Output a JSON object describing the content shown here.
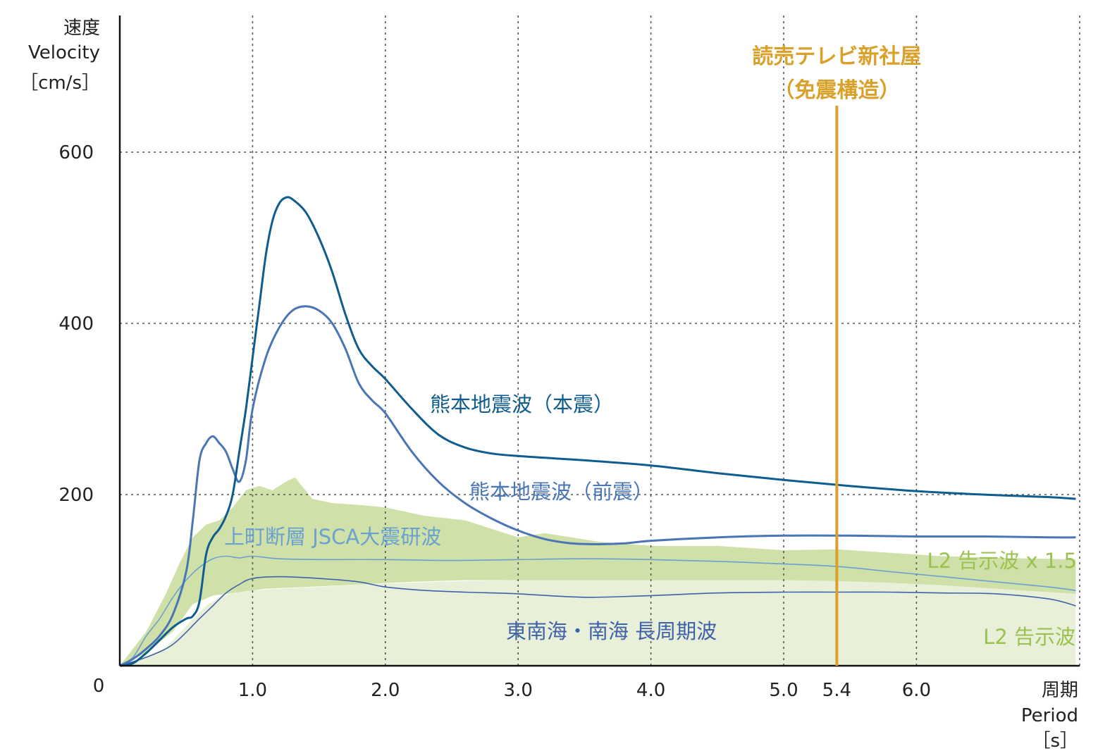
{
  "chart_data": {
    "type": "line",
    "y_axis": {
      "title_lines": [
        "速度",
        "Velocity",
        "［cm/s］"
      ],
      "ticks": [
        200,
        400,
        600
      ],
      "ylim": [
        0,
        760
      ],
      "grid": "dotted"
    },
    "x_axis": {
      "title_lines": [
        "周期",
        "Period",
        "［s］"
      ],
      "origin_label": "0",
      "ticks": [
        {
          "value": 1.0,
          "label": "1.0"
        },
        {
          "value": 2.0,
          "label": "2.0"
        },
        {
          "value": 3.0,
          "label": "3.0"
        },
        {
          "value": 4.0,
          "label": "4.0"
        },
        {
          "value": 5.0,
          "label": "5.0"
        },
        {
          "value": 6.0,
          "label": "6.0"
        }
      ],
      "xlim": [
        0,
        7.2
      ],
      "grid": "dotted"
    },
    "marker": {
      "x": 5.4,
      "label": "5.4",
      "title_lines": [
        "読売テレビ新社屋",
        "（免震構造）"
      ],
      "color": "#d9a12a"
    },
    "bands": [
      {
        "name": "L2 告示波 x 1.5",
        "color": "#cfe1a9",
        "lower": [
          [
            0,
            0
          ],
          [
            0.2,
            15
          ],
          [
            0.4,
            40
          ],
          [
            0.55,
            72
          ],
          [
            0.7,
            82
          ],
          [
            0.9,
            86
          ],
          [
            1.1,
            90
          ],
          [
            1.4,
            92
          ],
          [
            1.8,
            95
          ],
          [
            2.2,
            98
          ],
          [
            2.6,
            100
          ],
          [
            3.0,
            100
          ],
          [
            3.5,
            100
          ],
          [
            4.0,
            100
          ],
          [
            4.5,
            100
          ],
          [
            5.0,
            100
          ],
          [
            5.4,
            98
          ],
          [
            5.8,
            96
          ],
          [
            6.2,
            93
          ],
          [
            6.6,
            88
          ],
          [
            7.0,
            83
          ],
          [
            7.2,
            80
          ]
        ],
        "upper": [
          [
            0,
            0
          ],
          [
            0.2,
            40
          ],
          [
            0.35,
            85
          ],
          [
            0.45,
            120
          ],
          [
            0.55,
            150
          ],
          [
            0.65,
            165
          ],
          [
            0.75,
            170
          ],
          [
            0.85,
            185
          ],
          [
            0.95,
            205
          ],
          [
            1.05,
            210
          ],
          [
            1.15,
            205
          ],
          [
            1.25,
            215
          ],
          [
            1.32,
            220
          ],
          [
            1.45,
            195
          ],
          [
            1.6,
            190
          ],
          [
            1.8,
            188
          ],
          [
            2.0,
            185
          ],
          [
            2.3,
            175
          ],
          [
            2.6,
            170
          ],
          [
            3.0,
            150
          ],
          [
            3.2,
            155
          ],
          [
            3.6,
            145
          ],
          [
            4.0,
            140
          ],
          [
            4.5,
            140
          ],
          [
            5.0,
            135
          ],
          [
            5.4,
            136
          ],
          [
            5.8,
            132
          ],
          [
            6.2,
            128
          ],
          [
            6.6,
            126
          ],
          [
            7.0,
            125
          ],
          [
            7.2,
            124
          ]
        ]
      },
      {
        "name": "L2 告示波",
        "color": "#e8f0da",
        "lower": [
          [
            0,
            0
          ],
          [
            7.2,
            0
          ]
        ],
        "upper": [
          [
            0,
            0
          ],
          [
            0.2,
            10
          ],
          [
            0.35,
            22
          ],
          [
            0.45,
            38
          ],
          [
            0.55,
            55
          ],
          [
            0.65,
            70
          ],
          [
            0.75,
            80
          ],
          [
            0.85,
            85
          ],
          [
            1.0,
            88
          ],
          [
            1.2,
            90
          ],
          [
            1.5,
            92
          ],
          [
            1.8,
            95
          ],
          [
            2.2,
            97
          ],
          [
            2.6,
            99
          ],
          [
            3.0,
            100
          ],
          [
            3.5,
            100
          ],
          [
            4.0,
            100
          ],
          [
            4.5,
            100
          ],
          [
            5.0,
            100
          ],
          [
            5.4,
            99
          ],
          [
            5.8,
            97
          ],
          [
            6.2,
            94
          ],
          [
            6.6,
            90
          ],
          [
            7.0,
            86
          ],
          [
            7.2,
            84
          ]
        ]
      }
    ],
    "series": [
      {
        "name": "熊本地震波（本震）",
        "color": "#0e5d8e",
        "width": 3,
        "points": [
          [
            0,
            0
          ],
          [
            0.1,
            3
          ],
          [
            0.2,
            15
          ],
          [
            0.3,
            30
          ],
          [
            0.4,
            45
          ],
          [
            0.5,
            55
          ],
          [
            0.55,
            58
          ],
          [
            0.6,
            75
          ],
          [
            0.65,
            130
          ],
          [
            0.7,
            150
          ],
          [
            0.75,
            160
          ],
          [
            0.8,
            175
          ],
          [
            0.85,
            200
          ],
          [
            0.9,
            250
          ],
          [
            0.95,
            300
          ],
          [
            1.0,
            360
          ],
          [
            1.05,
            420
          ],
          [
            1.1,
            480
          ],
          [
            1.15,
            520
          ],
          [
            1.2,
            540
          ],
          [
            1.25,
            547
          ],
          [
            1.3,
            545
          ],
          [
            1.4,
            530
          ],
          [
            1.5,
            500
          ],
          [
            1.6,
            460
          ],
          [
            1.7,
            410
          ],
          [
            1.8,
            370
          ],
          [
            1.9,
            350
          ],
          [
            2.0,
            335
          ],
          [
            2.2,
            300
          ],
          [
            2.4,
            270
          ],
          [
            2.6,
            255
          ],
          [
            2.8,
            248
          ],
          [
            3.0,
            245
          ],
          [
            3.2,
            243
          ],
          [
            3.5,
            240
          ],
          [
            4.0,
            234
          ],
          [
            4.5,
            225
          ],
          [
            5.0,
            217
          ],
          [
            5.5,
            210
          ],
          [
            6.0,
            204
          ],
          [
            6.5,
            200
          ],
          [
            7.0,
            197
          ],
          [
            7.2,
            195
          ]
        ]
      },
      {
        "name": "熊本地震波（前震）",
        "color": "#4a76b5",
        "width": 3,
        "points": [
          [
            0,
            0
          ],
          [
            0.1,
            8
          ],
          [
            0.2,
            20
          ],
          [
            0.3,
            35
          ],
          [
            0.4,
            60
          ],
          [
            0.5,
            110
          ],
          [
            0.55,
            170
          ],
          [
            0.6,
            240
          ],
          [
            0.65,
            260
          ],
          [
            0.7,
            268
          ],
          [
            0.75,
            260
          ],
          [
            0.8,
            250
          ],
          [
            0.85,
            230
          ],
          [
            0.9,
            215
          ],
          [
            0.95,
            240
          ],
          [
            1.0,
            300
          ],
          [
            1.1,
            360
          ],
          [
            1.2,
            395
          ],
          [
            1.3,
            415
          ],
          [
            1.4,
            420
          ],
          [
            1.5,
            415
          ],
          [
            1.6,
            400
          ],
          [
            1.7,
            370
          ],
          [
            1.8,
            330
          ],
          [
            1.9,
            310
          ],
          [
            2.0,
            295
          ],
          [
            2.2,
            250
          ],
          [
            2.4,
            215
          ],
          [
            2.6,
            190
          ],
          [
            2.8,
            172
          ],
          [
            3.0,
            158
          ],
          [
            3.2,
            148
          ],
          [
            3.4,
            143
          ],
          [
            3.6,
            142
          ],
          [
            3.8,
            143
          ],
          [
            4.0,
            146
          ],
          [
            4.5,
            150
          ],
          [
            5.0,
            152
          ],
          [
            5.5,
            152
          ],
          [
            6.0,
            151
          ],
          [
            6.5,
            151
          ],
          [
            7.0,
            150
          ],
          [
            7.2,
            150
          ]
        ]
      },
      {
        "name": "上町断層 JSCA大震研波",
        "color": "#6aa1cf",
        "width": 1.6,
        "points": [
          [
            0,
            0
          ],
          [
            0.1,
            10
          ],
          [
            0.2,
            35
          ],
          [
            0.3,
            55
          ],
          [
            0.4,
            80
          ],
          [
            0.5,
            100
          ],
          [
            0.6,
            115
          ],
          [
            0.7,
            125
          ],
          [
            0.8,
            128
          ],
          [
            0.9,
            126
          ],
          [
            1.0,
            128
          ],
          [
            1.2,
            125
          ],
          [
            1.5,
            124
          ],
          [
            2.0,
            124
          ],
          [
            2.5,
            123
          ],
          [
            3.0,
            124
          ],
          [
            3.5,
            125
          ],
          [
            4.0,
            124
          ],
          [
            4.5,
            122
          ],
          [
            5.0,
            119
          ],
          [
            5.4,
            116
          ],
          [
            5.8,
            110
          ],
          [
            6.2,
            104
          ],
          [
            6.6,
            98
          ],
          [
            7.0,
            92
          ],
          [
            7.2,
            88
          ]
        ]
      },
      {
        "name": "東南海・南海 長周期波",
        "color": "#3f63a8",
        "width": 1.6,
        "points": [
          [
            0,
            0
          ],
          [
            0.2,
            10
          ],
          [
            0.4,
            25
          ],
          [
            0.6,
            55
          ],
          [
            0.7,
            70
          ],
          [
            0.8,
            85
          ],
          [
            0.9,
            95
          ],
          [
            1.0,
            102
          ],
          [
            1.2,
            104
          ],
          [
            1.5,
            102
          ],
          [
            1.8,
            98
          ],
          [
            2.0,
            92
          ],
          [
            2.3,
            88
          ],
          [
            2.6,
            86
          ],
          [
            3.0,
            84
          ],
          [
            3.5,
            80
          ],
          [
            4.0,
            82
          ],
          [
            4.5,
            85
          ],
          [
            5.0,
            86
          ],
          [
            5.4,
            86
          ],
          [
            5.8,
            86
          ],
          [
            6.2,
            85
          ],
          [
            6.6,
            84
          ],
          [
            7.0,
            78
          ],
          [
            7.2,
            70
          ]
        ]
      }
    ],
    "labels": [
      {
        "text": "熊本地震波（本震）",
        "color": "#0e5d8e"
      },
      {
        "text": "熊本地震波（前震）",
        "color": "#4a76b5"
      },
      {
        "text": "上町断層 JSCA大震研波",
        "color": "#6aa1cf"
      },
      {
        "text": "東南海・南海 長周期波",
        "color": "#3f63a8"
      },
      {
        "text": "L2 告示波 x 1.5",
        "color": "#9bc24f"
      },
      {
        "text": "L2 告示波",
        "color": "#9bc24f"
      }
    ]
  }
}
